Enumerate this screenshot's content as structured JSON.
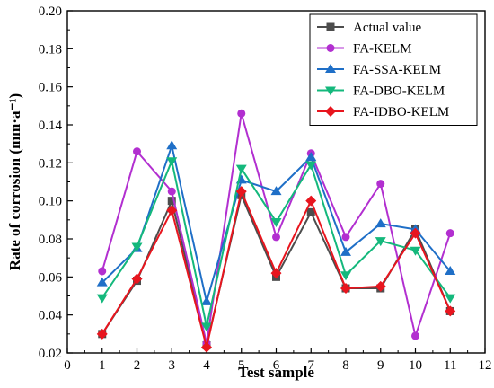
{
  "chart_data": {
    "type": "line",
    "xlabel": "Test sample",
    "ylabel": "Rate of corrosion (mm·a⁻¹)",
    "xlim": [
      0,
      12
    ],
    "ylim": [
      0.02,
      0.2
    ],
    "xticks": [
      0,
      1,
      2,
      3,
      4,
      5,
      6,
      7,
      8,
      9,
      10,
      11,
      12
    ],
    "yticks": [
      0.02,
      0.04,
      0.06,
      0.08,
      0.1,
      0.12,
      0.14,
      0.16,
      0.18,
      0.2
    ],
    "ytick_labels": [
      "0.02",
      "0.04",
      "0.06",
      "0.08",
      "0.10",
      "0.12",
      "0.14",
      "0.16",
      "0.18",
      "0.20"
    ],
    "legend_position": "top-right",
    "x": [
      1,
      2,
      3,
      4,
      5,
      6,
      7,
      8,
      9,
      10,
      11
    ],
    "series": [
      {
        "name": "Actual value",
        "color": "#4d4d4d",
        "marker": "square",
        "values": [
          0.03,
          0.058,
          0.1,
          0.024,
          0.103,
          0.06,
          0.094,
          0.054,
          0.054,
          0.085,
          0.042
        ]
      },
      {
        "name": "FA-KELM",
        "color": "#b22fd0",
        "marker": "circle",
        "values": [
          0.063,
          0.126,
          0.105,
          0.025,
          0.146,
          0.081,
          0.125,
          0.081,
          0.109,
          0.029,
          0.083
        ]
      },
      {
        "name": "FA-SSA-KELM",
        "color": "#1f6fc7",
        "marker": "triangle-up",
        "values": [
          0.057,
          0.075,
          0.129,
          0.047,
          0.111,
          0.105,
          0.123,
          0.073,
          0.088,
          0.085,
          0.063
        ]
      },
      {
        "name": "FA-DBO-KELM",
        "color": "#14b87c",
        "marker": "triangle-down",
        "values": [
          0.049,
          0.076,
          0.121,
          0.034,
          0.117,
          0.089,
          0.119,
          0.061,
          0.079,
          0.074,
          0.049
        ]
      },
      {
        "name": "FA-IDBO-KELM",
        "color": "#e8151e",
        "marker": "diamond",
        "values": [
          0.03,
          0.059,
          0.095,
          0.023,
          0.105,
          0.062,
          0.1,
          0.054,
          0.055,
          0.083,
          0.042
        ]
      }
    ]
  }
}
